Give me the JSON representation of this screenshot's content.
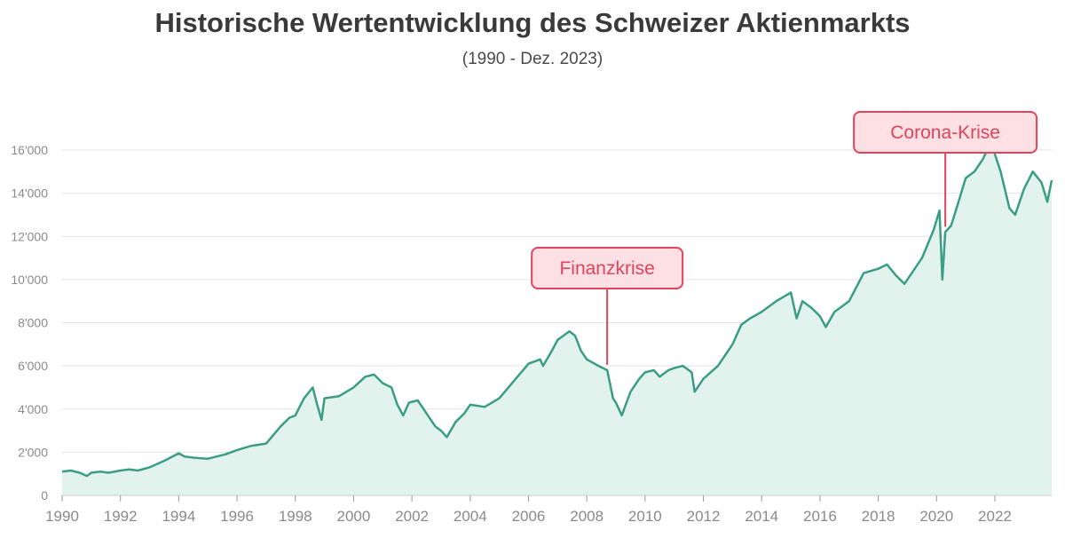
{
  "chart_data": {
    "type": "area",
    "title": "Historische Wertentwicklung des Schweizer Aktienmarkts",
    "subtitle": "(1990 - Dez. 2023)",
    "xlabel": "",
    "ylabel": "",
    "xlim": [
      1990,
      2023.95
    ],
    "ylim": [
      0,
      17000
    ],
    "x_ticks": [
      "1990",
      "1992",
      "1994",
      "1996",
      "1998",
      "2000",
      "2002",
      "2004",
      "2006",
      "2008",
      "2010",
      "2012",
      "2014",
      "2016",
      "2018",
      "2020",
      "2022"
    ],
    "y_ticks": [
      "0",
      "2'000",
      "4'000",
      "6'000",
      "8'000",
      "10'000",
      "12'000",
      "14'000",
      "16'000"
    ],
    "grid": "horizontal",
    "colors": {
      "line": "#3a9d84",
      "fill": "#e2f3ee",
      "annotation": "#e0435b",
      "annotation_bg": "#fde0e4"
    },
    "series": [
      {
        "x": [
          1990.0,
          1990.3,
          1990.6,
          1990.85,
          1991.0,
          1991.3,
          1991.6,
          1992.0,
          1992.3,
          1992.6,
          1993.0,
          1993.5,
          1994.0,
          1994.2,
          1994.5,
          1995.0,
          1995.3,
          1995.6,
          1996.0,
          1996.5,
          1997.0,
          1997.5,
          1997.8,
          1998.0,
          1998.3,
          1998.6,
          1998.75,
          1998.9,
          1999.0,
          1999.5,
          2000.0,
          2000.4,
          2000.7,
          2001.0,
          2001.3,
          2001.5,
          2001.7,
          2001.9,
          2002.2,
          2002.5,
          2002.8,
          2003.0,
          2003.2,
          2003.5,
          2003.8,
          2004.0,
          2004.5,
          2005.0,
          2005.5,
          2006.0,
          2006.4,
          2006.5,
          2006.8,
          2007.0,
          2007.4,
          2007.6,
          2007.8,
          2008.0,
          2008.4,
          2008.7,
          2008.9,
          2009.0,
          2009.2,
          2009.5,
          2009.8,
          2010.0,
          2010.3,
          2010.5,
          2010.8,
          2011.0,
          2011.3,
          2011.6,
          2011.7,
          2012.0,
          2012.5,
          2013.0,
          2013.3,
          2013.6,
          2014.0,
          2014.5,
          2015.0,
          2015.2,
          2015.4,
          2015.7,
          2016.0,
          2016.2,
          2016.5,
          2017.0,
          2017.5,
          2018.0,
          2018.3,
          2018.6,
          2018.9,
          2019.0,
          2019.5,
          2019.9,
          2020.1,
          2020.2,
          2020.3,
          2020.5,
          2020.8,
          2021.0,
          2021.3,
          2021.6,
          2021.9,
          2022.0,
          2022.2,
          2022.5,
          2022.7,
          2023.0,
          2023.3,
          2023.6,
          2023.8,
          2023.95
        ],
        "values": [
          1100,
          1150,
          1050,
          900,
          1050,
          1100,
          1050,
          1150,
          1200,
          1150,
          1300,
          1600,
          1950,
          1800,
          1750,
          1700,
          1800,
          1900,
          2100,
          2300,
          2400,
          3200,
          3600,
          3700,
          4500,
          5000,
          4200,
          3500,
          4500,
          4600,
          5000,
          5500,
          5600,
          5200,
          5000,
          4200,
          3700,
          4300,
          4400,
          3800,
          3200,
          3000,
          2700,
          3400,
          3800,
          4200,
          4100,
          4500,
          5300,
          6100,
          6300,
          6000,
          6700,
          7200,
          7600,
          7400,
          6700,
          6300,
          6000,
          5800,
          4500,
          4300,
          3700,
          4800,
          5400,
          5700,
          5800,
          5500,
          5800,
          5900,
          6000,
          5700,
          4800,
          5400,
          6000,
          7000,
          7900,
          8200,
          8500,
          9000,
          9400,
          8200,
          9000,
          8700,
          8300,
          7800,
          8500,
          9000,
          10300,
          10500,
          10700,
          10200,
          9800,
          10000,
          11000,
          12300,
          13200,
          10000,
          12200,
          12500,
          13800,
          14700,
          15000,
          15600,
          16500,
          15800,
          15000,
          13300,
          13000,
          14200,
          15000,
          14500,
          13600,
          14600
        ]
      }
    ],
    "annotations": [
      {
        "label": "Finanzkrise",
        "x": 2008.7
      },
      {
        "label": "Corona-Krise",
        "x": 2020.3
      }
    ]
  }
}
